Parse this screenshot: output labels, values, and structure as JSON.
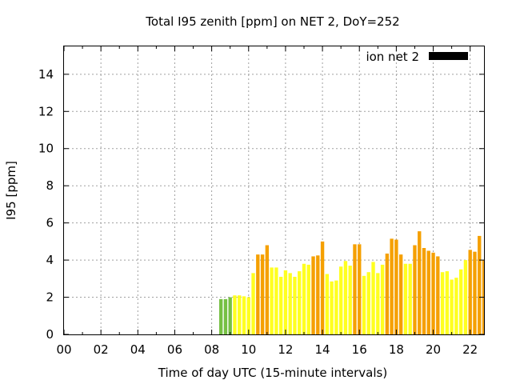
{
  "chart_data": {
    "type": "bar",
    "title": "Total I95 zenith [ppm] on NET 2, DoY=252",
    "xlabel": "Time of day UTC (15-minute intervals)",
    "ylabel": "I95 [ppm]",
    "xlim": [
      0,
      22.75
    ],
    "ylim": [
      0,
      15.5
    ],
    "x_ticks": [
      "00",
      "02",
      "04",
      "06",
      "08",
      "10",
      "12",
      "14",
      "16",
      "18",
      "20",
      "22"
    ],
    "y_ticks": [
      "0",
      "2",
      "4",
      "6",
      "8",
      "10",
      "12",
      "14"
    ],
    "grid": true,
    "legend": {
      "label": "ion net 2",
      "color": "#000000",
      "position": "top-right"
    },
    "bar_width_hours": 0.19,
    "colors": {
      "green": "#76c043",
      "yellow": "#ffff20",
      "orange": "#f5a000"
    },
    "series": [
      {
        "x": [
          8.5,
          8.75,
          9.0,
          9.25,
          9.5,
          9.75,
          10.0,
          10.25,
          10.5,
          10.75,
          11.0,
          11.25,
          11.5,
          11.75,
          12.0,
          12.25,
          12.5,
          12.75,
          13.0,
          13.25,
          13.5,
          13.75,
          14.0,
          14.25,
          14.5,
          14.75,
          15.0,
          15.25,
          15.5,
          15.75,
          16.0,
          16.25,
          16.5,
          16.75,
          17.0,
          17.25,
          17.5,
          17.75,
          18.0,
          18.25,
          18.5,
          18.75,
          19.0,
          19.25,
          19.5,
          19.75,
          20.0,
          20.25,
          20.5,
          20.75,
          21.0,
          21.25,
          21.5,
          21.75,
          22.0,
          22.25,
          22.5,
          22.75
        ],
        "values": [
          1.9,
          1.9,
          2.0,
          2.1,
          2.1,
          2.05,
          2.0,
          3.3,
          4.3,
          4.3,
          4.8,
          3.6,
          3.6,
          3.1,
          3.45,
          3.3,
          3.1,
          3.4,
          3.8,
          3.75,
          4.2,
          4.25,
          5.0,
          3.25,
          2.85,
          2.9,
          3.65,
          3.95,
          3.7,
          4.85,
          4.85,
          3.15,
          3.35,
          3.9,
          3.3,
          3.75,
          4.35,
          5.15,
          5.1,
          4.3,
          3.8,
          3.8,
          4.8,
          5.55,
          4.65,
          4.5,
          4.4,
          4.2,
          3.35,
          3.4,
          2.95,
          3.05,
          3.5,
          4.0,
          4.55,
          4.45,
          5.3,
          4.0
        ],
        "colors": [
          "green",
          "green",
          "green",
          "yellow",
          "yellow",
          "yellow",
          "yellow",
          "yellow",
          "orange",
          "orange",
          "orange",
          "yellow",
          "yellow",
          "yellow",
          "yellow",
          "yellow",
          "yellow",
          "yellow",
          "yellow",
          "yellow",
          "orange",
          "orange",
          "orange",
          "yellow",
          "yellow",
          "yellow",
          "yellow",
          "yellow",
          "yellow",
          "orange",
          "orange",
          "yellow",
          "yellow",
          "yellow",
          "yellow",
          "yellow",
          "orange",
          "orange",
          "orange",
          "orange",
          "yellow",
          "yellow",
          "orange",
          "orange",
          "orange",
          "orange",
          "orange",
          "orange",
          "yellow",
          "yellow",
          "yellow",
          "yellow",
          "yellow",
          "yellow",
          "orange",
          "orange",
          "orange",
          "orange"
        ]
      }
    ]
  }
}
